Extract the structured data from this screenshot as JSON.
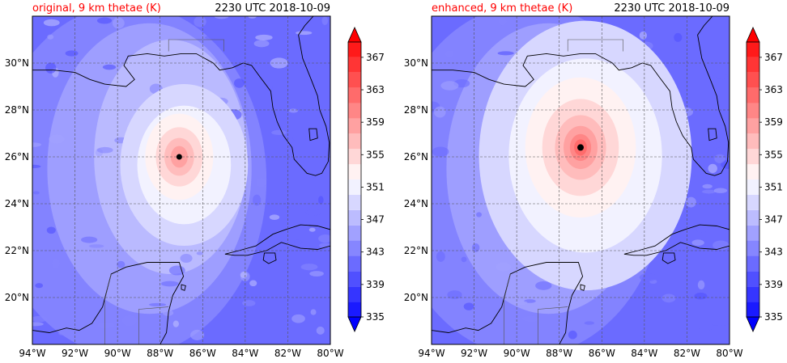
{
  "colors": {
    "title_red": "#ff0000",
    "text": "#000000",
    "land_line": "#000000",
    "grid": "#555555",
    "marker": "#000000",
    "colorbar": [
      "#0000ff",
      "#1a1aff",
      "#3535ff",
      "#5050ff",
      "#6b6bff",
      "#8686ff",
      "#a1a1ff",
      "#bcbcff",
      "#d7d7ff",
      "#f2f2ff",
      "#fff2f2",
      "#ffd7d7",
      "#ffbcbc",
      "#ffa1a1",
      "#ff8686",
      "#ff6b6b",
      "#ff5050",
      "#ff3535",
      "#ff1a1a",
      "#ff0000"
    ]
  },
  "panels": [
    {
      "id": "original",
      "title_left": "original, 9 km thetae (K)",
      "title_right": "2230 UTC 2018-10-09",
      "storm_center": {
        "lon": -87.1,
        "lat": 26.0
      },
      "warm_core_radius_deg": [
        3.0,
        2.2,
        1.6,
        1.1,
        0.7,
        0.4
      ],
      "warm_core_levels": [
        351,
        353,
        355,
        357,
        359,
        361
      ]
    },
    {
      "id": "enhanced",
      "title_left": "enhanced, 9 km thetae (K)",
      "title_right": "2230 UTC 2018-10-09",
      "storm_center": {
        "lon": -87.0,
        "lat": 26.4
      },
      "warm_core_radius_deg": [
        5.0,
        3.6,
        2.6,
        1.8,
        1.2,
        0.8,
        0.5,
        0.3
      ],
      "warm_core_levels": [
        351,
        353,
        355,
        357,
        359,
        361,
        363,
        365
      ]
    }
  ],
  "map": {
    "lon_range": [
      -94,
      -80
    ],
    "lat_range": [
      18,
      32
    ],
    "x_ticks": [
      "94°W",
      "92°W",
      "90°W",
      "88°W",
      "86°W",
      "84°W",
      "82°W",
      "80°W"
    ],
    "x_tick_values": [
      -94,
      -92,
      -90,
      -88,
      -86,
      -84,
      -82,
      -80
    ],
    "y_ticks": [
      "20°N",
      "22°N",
      "24°N",
      "26°N",
      "28°N",
      "30°N"
    ],
    "y_tick_values": [
      20,
      22,
      24,
      26,
      28,
      30
    ]
  },
  "colorbar": {
    "min": 335,
    "max": 369,
    "step": 2,
    "tick_labels": [
      "335",
      "339",
      "343",
      "347",
      "351",
      "355",
      "359",
      "363",
      "367"
    ],
    "tick_values": [
      335,
      339,
      343,
      347,
      351,
      355,
      359,
      363,
      367
    ]
  }
}
